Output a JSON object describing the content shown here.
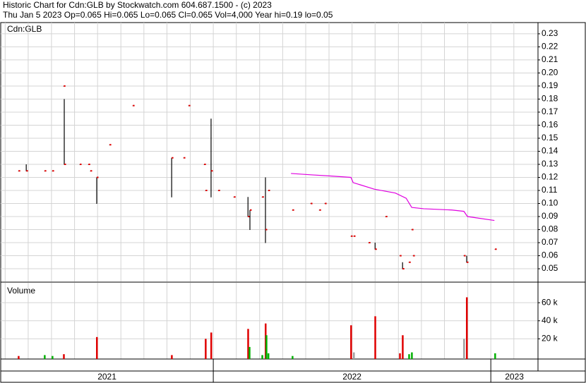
{
  "chart_data": {
    "type": "ohlc",
    "title": "Historic Chart for Cdn:GLB by Stockwatch.com 604.687.1500 - (c) 2023",
    "subtitle": "Thu Jan  5 2023  Op=0.065  Hi=0.065  Lo=0.065  Cl=0.065  Vol=4,000  Year hi=0.19  lo=0.05",
    "panel_label": "Cdn:GLB",
    "xlim": [
      2021.234,
      2023.17
    ],
    "xticks": [
      2022,
      2023
    ],
    "periods": [
      "2021",
      "2022",
      "2023"
    ],
    "xgrid": [
      2021.25,
      2021.333,
      2021.417,
      2021.5,
      2021.583,
      2021.667,
      2021.75,
      2021.833,
      2021.917,
      2022,
      2022.083,
      2022.167,
      2022.25,
      2022.333,
      2022.417,
      2022.5,
      2022.583,
      2022.667,
      2022.75,
      2022.833,
      2022.917,
      2023,
      2023.083
    ],
    "ylim": [
      0.0403,
      0.2386
    ],
    "yticks": [
      0.05,
      0.06,
      0.07,
      0.08,
      0.09,
      {
        "value": 0.1,
        "label": "0.10"
      },
      0.11,
      0.12,
      0.13,
      0.14,
      0.15,
      0.16,
      0.17,
      0.18,
      0.19,
      {
        "value": 0.2,
        "label": "0.20"
      },
      0.21,
      0.22,
      0.23
    ],
    "grid": true,
    "bar_color": "#000000",
    "close_color": "#e00000",
    "x": [
      2021.298,
      2021.326,
      2021.392,
      2021.42,
      2021.461,
      2021.463,
      2021.519,
      2021.55,
      2021.557,
      2021.58,
      2021.626,
      2021.71,
      2021.85,
      2021.893,
      2021.911,
      2021.967,
      2021.972,
      2021.992,
      2022.018,
      2022.074,
      2022.125,
      2022.132,
      2022.176,
      2022.188,
      2022.198,
      2022.285,
      2022.351,
      2022.382,
      2022.402,
      2022.496,
      2022.506,
      2022.56,
      2022.583,
      2022.621,
      2022.672,
      2022.682,
      2022.705,
      2022.715,
      2022.72,
      2022.903,
      2022.913,
      2023.015
    ],
    "high": [
      0.125,
      0.13,
      0.125,
      0.125,
      0.19,
      0.18,
      0.13,
      0.13,
      0.125,
      0.12,
      0.145,
      0.175,
      0.135,
      0.135,
      0.175,
      0.13,
      0.11,
      0.165,
      0.11,
      0.105,
      0.105,
      0.095,
      0.105,
      0.12,
      0.11,
      0.095,
      0.1,
      0.095,
      0.1,
      0.075,
      0.075,
      0.07,
      0.07,
      0.09,
      0.06,
      0.055,
      0.055,
      0.08,
      0.06,
      0.06,
      0.06,
      0.065
    ],
    "low": [
      0.125,
      0.125,
      0.125,
      0.125,
      0.19,
      0.13,
      0.13,
      0.13,
      0.125,
      0.1,
      0.145,
      0.175,
      0.105,
      0.135,
      0.175,
      0.13,
      0.11,
      0.105,
      0.11,
      0.105,
      0.09,
      0.08,
      0.105,
      0.07,
      0.11,
      0.095,
      0.1,
      0.095,
      0.1,
      0.075,
      0.075,
      0.07,
      0.065,
      0.09,
      0.06,
      0.05,
      0.055,
      0.08,
      0.06,
      0.06,
      0.055,
      0.065
    ],
    "close": [
      0.125,
      0.125,
      0.125,
      0.125,
      0.19,
      0.13,
      0.13,
      0.13,
      0.125,
      0.12,
      0.145,
      0.175,
      0.135,
      0.135,
      0.175,
      0.13,
      0.11,
      0.125,
      0.11,
      0.105,
      0.09,
      0.095,
      0.105,
      0.08,
      0.11,
      0.095,
      0.1,
      0.095,
      0.1,
      0.075,
      0.075,
      0.07,
      0.065,
      0.09,
      0.06,
      0.05,
      0.055,
      0.08,
      0.06,
      0.06,
      0.055,
      0.065
    ],
    "average": {
      "color": "#e000e0",
      "x": [
        2022.28,
        2022.351,
        2022.427,
        2022.496,
        2022.504,
        2022.58,
        2022.656,
        2022.695,
        2022.715,
        2022.758,
        2022.86,
        2022.903,
        2022.916,
        2023.013
      ],
      "values": [
        0.123,
        0.122,
        0.121,
        0.12,
        0.116,
        0.111,
        0.108,
        0.104,
        0.097,
        0.096,
        0.095,
        0.094,
        0.09,
        0.087
      ]
    },
    "volume": {
      "label": "Volume",
      "ylim": [
        0,
        82000
      ],
      "yticks": [
        {
          "value": 20000,
          "label": "20 k"
        },
        {
          "value": 40000,
          "label": "40 k"
        },
        {
          "value": 60000,
          "label": "60 k"
        }
      ],
      "x": [
        2021.298,
        2021.392,
        2021.42,
        2021.461,
        2021.58,
        2021.85,
        2021.972,
        2021.992,
        2022.125,
        2022.13,
        2022.176,
        2022.188,
        2022.191,
        2022.198,
        2022.285,
        2022.496,
        2022.506,
        2022.583,
        2022.672,
        2022.682,
        2022.705,
        2022.715,
        2022.903,
        2022.913,
        2023.015
      ],
      "values": [
        1000,
        2000,
        1000,
        3000,
        22000,
        2000,
        20000,
        27000,
        31000,
        11000,
        2000,
        37000,
        24000,
        4000,
        1000,
        35000,
        5000,
        45000,
        4000,
        24000,
        3000,
        5000,
        20000,
        66000,
        4000
      ],
      "colors": [
        "#e00000",
        "#00b000",
        "#00b000",
        "#e00000",
        "#e00000",
        "#e00000",
        "#e00000",
        "#e00000",
        "#e00000",
        "#00b000",
        "#00b000",
        "#e00000",
        "#00b000",
        "#00b000",
        "#00b000",
        "#e00000",
        "#a0a0a0",
        "#e00000",
        "#e00000",
        "#e00000",
        "#00b000",
        "#00b000",
        "#a0a0a0",
        "#e00000",
        "#00b000"
      ]
    }
  }
}
